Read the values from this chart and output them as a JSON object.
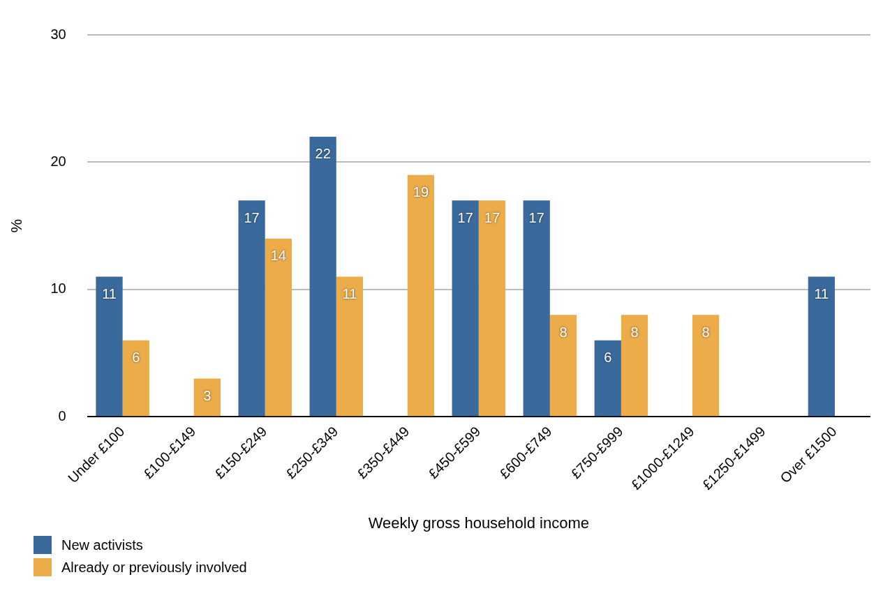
{
  "chart_data": {
    "type": "bar",
    "xlabel": "Weekly gross household income",
    "ylabel": "%",
    "categories": [
      "Under £100",
      "£100-£149",
      "£150-£249",
      "£250-£349",
      "£350-£449",
      "£450-£599",
      "£600-£749",
      "£750-£999",
      "£1000-£1249",
      "£1250-£1499",
      "Over £1500"
    ],
    "series": [
      {
        "name": "New activists",
        "color": "#3a6a9c",
        "values": [
          11,
          null,
          17,
          22,
          null,
          17,
          17,
          6,
          null,
          null,
          11
        ]
      },
      {
        "name": "Already or previously involved",
        "color": "#ecac4a",
        "values": [
          6,
          3,
          14,
          11,
          19,
          17,
          8,
          8,
          8,
          null,
          null
        ]
      }
    ],
    "ylim": [
      0,
      30
    ],
    "yticks": [
      0,
      10,
      20,
      30
    ],
    "grid": "y",
    "legend": "bottom left",
    "data_labels": true
  }
}
